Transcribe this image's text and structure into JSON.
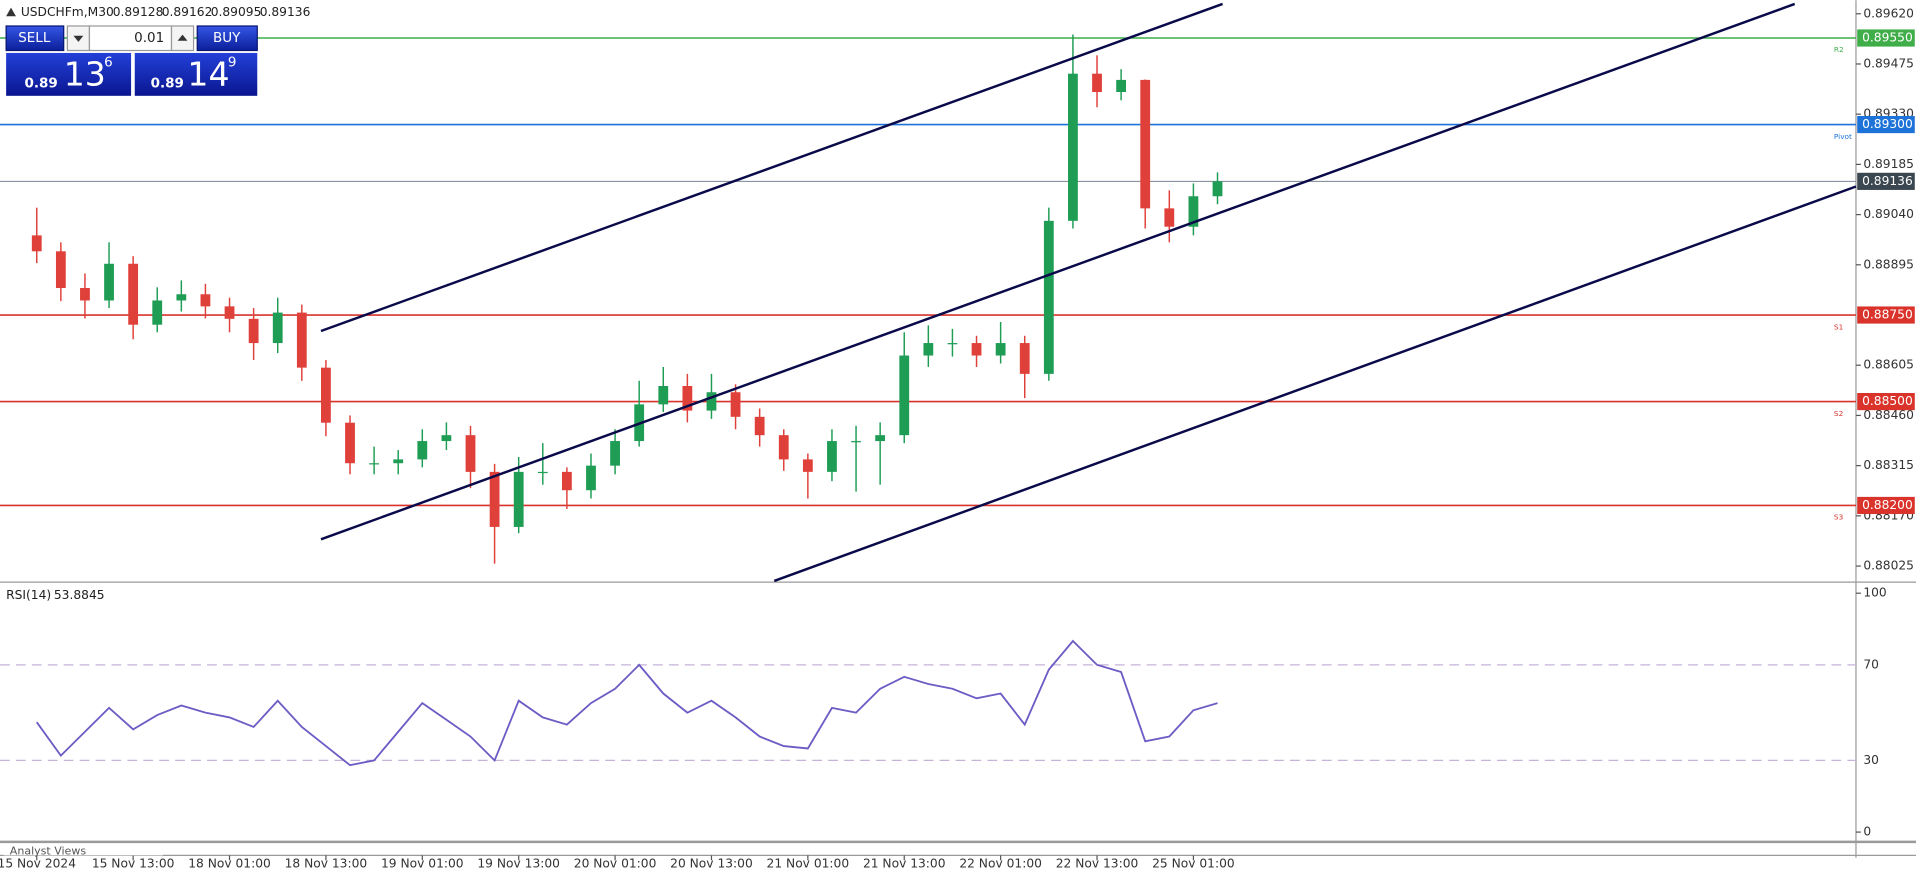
{
  "chart_data": {
    "type": "candlestick",
    "symbol": "USDCHFm,M30",
    "header_ohlc": [
      0.89128,
      0.89162,
      0.89095,
      0.89136
    ],
    "categories": [
      "15 Nov 2024",
      null,
      null,
      null,
      "15 Nov 13:00",
      null,
      null,
      null,
      "18 Nov 01:00",
      null,
      null,
      null,
      "18 Nov 13:00",
      null,
      null,
      null,
      "19 Nov 01:00",
      null,
      null,
      null,
      "19 Nov 13:00",
      null,
      null,
      null,
      "20 Nov 01:00",
      null,
      null,
      null,
      "20 Nov 13:00",
      null,
      null,
      null,
      "21 Nov 01:00",
      null,
      null,
      null,
      "21 Nov 13:00",
      null,
      null,
      null,
      "22 Nov 01:00",
      null,
      null,
      null,
      "22 Nov 13:00",
      null,
      null,
      null,
      "25 Nov 01:00",
      null
    ],
    "open": [
      0.8898,
      0.88934,
      0.88828,
      0.88792,
      0.88898,
      0.88722,
      0.88792,
      0.8881,
      0.88775,
      0.88739,
      0.88669,
      0.88757,
      0.88598,
      0.88439,
      0.88322,
      0.88322,
      0.88333,
      0.88386,
      0.88403,
      0.88297,
      0.88138,
      0.88297,
      0.88297,
      0.88244,
      0.88315,
      0.88386,
      0.88492,
      0.88545,
      0.88474,
      0.88527,
      0.88456,
      0.88403,
      0.88333,
      0.88297,
      0.88386,
      0.88386,
      0.88403,
      0.88633,
      0.88669,
      0.88669,
      0.88633,
      0.88669,
      0.8858,
      0.89022,
      0.89447,
      0.89394,
      0.89429,
      0.89058,
      0.89005,
      0.89093
    ],
    "high": [
      0.8906,
      0.8896,
      0.8887,
      0.8896,
      0.8892,
      0.8883,
      0.8885,
      0.8884,
      0.888,
      0.8877,
      0.888,
      0.8878,
      0.8862,
      0.8846,
      0.8837,
      0.8836,
      0.8842,
      0.8844,
      0.8843,
      0.8832,
      0.8834,
      0.8838,
      0.8831,
      0.8835,
      0.8842,
      0.8856,
      0.886,
      0.8858,
      0.8858,
      0.8855,
      0.8848,
      0.8842,
      0.8835,
      0.8842,
      0.8843,
      0.8844,
      0.887,
      0.8872,
      0.8871,
      0.8869,
      0.8873,
      0.8869,
      0.8906,
      0.8956,
      0.895,
      0.8946,
      0.8943,
      0.8911,
      0.8913,
      0.89162
    ],
    "low": [
      0.889,
      0.8879,
      0.8874,
      0.8877,
      0.8868,
      0.887,
      0.8876,
      0.8874,
      0.887,
      0.8862,
      0.8864,
      0.8856,
      0.884,
      0.8829,
      0.8829,
      0.8829,
      0.8831,
      0.8836,
      0.8825,
      0.88032,
      0.8812,
      0.8826,
      0.8819,
      0.8822,
      0.8829,
      0.8837,
      0.8847,
      0.8844,
      0.8845,
      0.8842,
      0.8837,
      0.883,
      0.8822,
      0.8827,
      0.8824,
      0.8826,
      0.8838,
      0.886,
      0.8863,
      0.886,
      0.8861,
      0.8851,
      0.8856,
      0.89,
      0.8935,
      0.8937,
      0.89,
      0.8896,
      0.8898,
      0.8907
    ],
    "close": [
      0.88934,
      0.88828,
      0.88792,
      0.88898,
      0.88722,
      0.88792,
      0.8881,
      0.88775,
      0.88739,
      0.88669,
      0.88757,
      0.88598,
      0.88439,
      0.88322,
      0.88322,
      0.88333,
      0.88386,
      0.88403,
      0.88297,
      0.88138,
      0.88297,
      0.88297,
      0.88244,
      0.88315,
      0.88386,
      0.88492,
      0.88545,
      0.88474,
      0.88527,
      0.88456,
      0.88403,
      0.88333,
      0.88297,
      0.88386,
      0.88386,
      0.88403,
      0.88633,
      0.88669,
      0.88669,
      0.88633,
      0.88669,
      0.8858,
      0.89022,
      0.89447,
      0.89394,
      0.89429,
      0.89058,
      0.89005,
      0.89093,
      0.89136
    ],
    "up_color": "#1f9d55",
    "down_color": "#e0403a",
    "ylim": [
      0.87982,
      0.89659
    ],
    "yticks": [
      {
        "value": 0.8962,
        "label": "0.89620"
      },
      0.89475,
      {
        "value": 0.8933,
        "label": "0.89330"
      },
      0.89185,
      {
        "value": 0.8904,
        "label": "0.89040"
      },
      0.88895,
      0.88605,
      {
        "value": 0.8846,
        "label": "0.88460"
      },
      0.88315,
      {
        "value": 0.8817,
        "label": "0.88170"
      },
      0.88025
    ],
    "levels": [
      {
        "name": "R2",
        "price": {
          "value": 0.8955,
          "label": "0.89550"
        },
        "color": "#3fae49"
      },
      {
        "name": "Pivot",
        "price": {
          "value": 0.893,
          "label": "0.89300"
        },
        "color": "#1e73d8"
      },
      {
        "name": "S1",
        "price": {
          "value": 0.8875,
          "label": "0.88750"
        },
        "color": "#d9332b"
      },
      {
        "name": "S2",
        "price": {
          "value": 0.885,
          "label": "0.88500"
        },
        "color": "#d9332b"
      },
      {
        "name": "S3",
        "price": {
          "value": 0.882,
          "label": "0.88200"
        },
        "color": "#d9332b"
      }
    ],
    "last_price": 0.89136,
    "last_color": "#3a4650",
    "rsi": {
      "type": "line",
      "title": "RSI(14)",
      "current": 53.8845,
      "color": "#6e5bc4",
      "values": [
        46,
        32,
        42,
        52,
        43,
        49,
        53,
        50,
        48,
        44,
        55,
        44,
        36,
        28,
        30,
        42,
        54,
        47,
        40,
        30,
        55,
        48,
        45,
        54,
        60,
        70,
        58,
        50,
        55,
        48,
        40,
        36,
        35,
        52,
        50,
        60,
        65,
        62,
        60,
        56,
        58,
        45,
        68,
        80,
        70,
        67,
        38,
        40,
        51,
        54
      ],
      "ylim": [
        0,
        100
      ],
      "yticks": [
        100,
        70,
        30,
        0
      ]
    }
  },
  "trade_panel": {
    "sell": "SELL",
    "buy": "BUY",
    "lot": "0.01",
    "bid": {
      "prefix": "0.89",
      "big": "13",
      "small": "6"
    },
    "ask": {
      "prefix": "0.89",
      "big": "14",
      "small": "9"
    }
  },
  "footer": "Analyst Views"
}
